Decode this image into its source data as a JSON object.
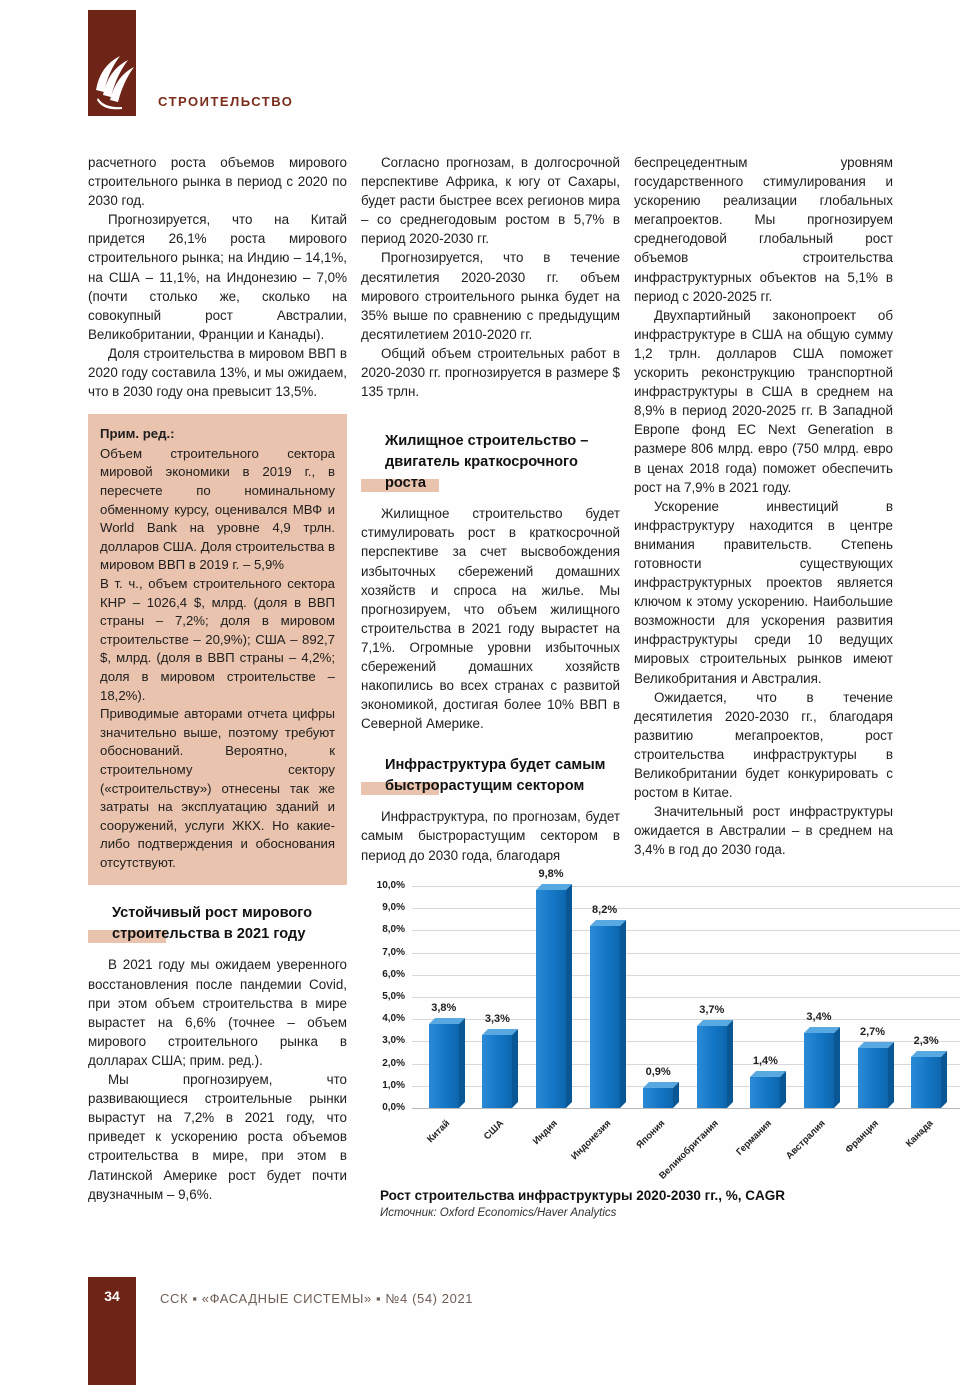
{
  "header": {
    "section_label": "СТРОИТЕЛЬСТВО"
  },
  "colors": {
    "brand": "#6e2416",
    "highlight": "#e9c3ad",
    "bar_blue": "#1377c6"
  },
  "col1": {
    "intro_paragraphs": [
      {
        "text": "расчетного роста объемов мирового строительного рынка в период с 2020 по 2030 год.",
        "indent": false
      },
      {
        "text": "Прогнозируется, что на Китай придется 26,1% роста мирового строительного рынка; на Индию – 14,1%, на США – 11,1%, на Индонезию – 7,0% (почти столько же, сколько на совокупный рост Австралии, Великобритании, Франции и Канады).",
        "indent": true
      },
      {
        "text": "Доля строительства в мировом ВВП в 2020 году составила 13%, и мы ожидаем, что в 2030 году она превысит 13,5%.",
        "indent": true
      }
    ],
    "note_box": {
      "title": "Прим. ред.:",
      "paragraphs": [
        {
          "text": "Объем строительного сектора мировой экономики в 2019 г., в пересчете по номинальному обменному курсу, оценивался МВФ и World Bank на уровне 4,9 трлн. долларов США. Доля строительства в мировом ВВП в 2019 г. – 5,9%",
          "indent": false
        },
        {
          "text": "В т. ч., объем строительного сектора КНР – 1026,4 $, млрд. (доля в ВВП страны – 7,2%; доля в мировом строительстве – 20,9%); США – 892,7 $, млрд. (доля в ВВП страны – 4,2%; доля в мировом строительстве – 18,2%).",
          "indent": false
        },
        {
          "text": "Приводимые авторами отчета цифры значительно выше, поэтому требуют обоснований. Вероятно, к строительному сектору («строительству») отнесены так же затраты на эксплуатацию зданий и сооружений, услуги ЖКХ. Но какие-либо подтверждения и обоснования отсутствуют.",
          "indent": false
        }
      ]
    },
    "heading": "Устойчивый рост мирового строительства в 2021 году",
    "growth_paragraphs": [
      {
        "text": "В 2021 году мы ожидаем уверенного восстановления после пандемии Covid, при этом объем строительства в мире вырастет на 6,6% (точнее – объем мирового строительного рынка в долларах США; прим. ред.).",
        "indent": true
      },
      {
        "text": "Мы прогнозируем, что развивающиеся строительные рынки вырастут на 7,2% в 2021 году, что приведет к ускорению роста объемов строительства в мире, при этом в Латинской Америке рост будет почти двузначным – 9,6%.",
        "indent": true
      }
    ]
  },
  "col2": {
    "forecast_paragraphs": [
      {
        "text": "Согласно прогнозам, в долгосрочной перспективе Африка, к югу от Сахары, будет расти быстрее всех регионов мира – со среднегодовым ростом в 5,7% в период 2020-2030 гг.",
        "indent": true
      },
      {
        "text": "Прогнозируется, что в течение десятилетия 2020-2030 гг. объем мирового строительного рынка будет на 35% выше по сравнению с предыдущим десятилетием 2010-2020 гг.",
        "indent": true
      },
      {
        "text": "Общий объем строительных работ в 2020-2030 гг. прогнозируется в размере $ 135 трлн.",
        "indent": true
      }
    ],
    "heading_housing": "Жилищное строительство – двигатель краткосрочного роста",
    "housing_paragraphs": [
      {
        "text": "Жилищное строительство будет стимулировать рост в краткосрочной перспективе за счет высвобождения избыточных сбережений домашних хозяйств и спроса на жилье. Мы прогнозируем, что объем жилищного строительства в 2021 году вырастет на 7,1%. Огромные уровни избыточных сбережений домашних хозяйств накопились во всех странах с развитой экономикой, достигая более 10% ВВП в Северной Америке.",
        "indent": true
      }
    ],
    "heading_infrastructure": "Инфраструктура будет самым быстрорастущим сектором",
    "infrastructure_paragraphs": [
      {
        "text": "Инфраструктура, по прогнозам, будет самым быстрорастущим сектором в период до 2030 года, благодаря",
        "indent": true
      }
    ]
  },
  "col3": {
    "paragraphs": [
      {
        "text": "беспрецедентным уровням государственного стимулирования и ускорению реализации глобальных мегапроектов. Мы прогнозируем среднегодовой глобальный рост объемов строительства инфраструктурных объектов на 5,1% в период с 2020-2025 гг.",
        "indent": false
      },
      {
        "text": "Двухпартийный законопроект об инфраструктуре в США на общую сумму 1,2 трлн. долларов США поможет ускорить реконструкцию транспортной инфраструктуры в США в среднем на 8,9% в период 2020-2025 гг. В Западной Европе фонд EC Next Generation в размере 806 млрд. евро (750 млрд. евро в ценах 2018 года) поможет обеспечить рост на 7,9% в 2021 году.",
        "indent": true
      },
      {
        "text": "Ускорение инвестиций в инфраструктуру находится в центре внимания правительств. Степень готовности существующих инфраструктурных проектов является ключом к этому ускорению. Наибольшие возможности для ускорения развития инфраструктуры среди 10 ведущих мировых строительных рынков имеют Великобритания и Австралия.",
        "indent": true
      },
      {
        "text": "Ожидается, что в течение десятилетия 2020-2030 гг., благодаря развитию мегапроектов, рост строительства инфраструктуры в Великобритании будет конкурировать с ростом в Китае.",
        "indent": true
      },
      {
        "text": "Значительный рост инфраструктуры ожидается в Австралии – в среднем на 3,4% в год до 2030 года.",
        "indent": true
      }
    ]
  },
  "chart_data": {
    "type": "bar",
    "categories": [
      "Китай",
      "США",
      "Индия",
      "Индонезия",
      "Япония",
      "Великобритания",
      "Германия",
      "Австралия",
      "Франция",
      "Канада"
    ],
    "values": [
      3.8,
      3.3,
      9.8,
      8.2,
      0.9,
      3.7,
      1.4,
      3.4,
      2.7,
      2.3
    ],
    "value_labels": [
      "3,8%",
      "3,3%",
      "9,8%",
      "8,2%",
      "0,9%",
      "3,7%",
      "1,4%",
      "3,4%",
      "2,7%",
      "2,3%"
    ],
    "y_ticks": [
      "10,0%",
      "9,0%",
      "8,0%",
      "7,0%",
      "6,0%",
      "5,0%",
      "4,0%",
      "3,0%",
      "2,0%",
      "1,0%",
      "0,0%"
    ],
    "ylim": [
      0,
      10
    ],
    "grid": true,
    "legend": false,
    "bar_color": "#1377c6",
    "title": "Рост строительства инфраструктуры 2020-2030 гг., %, CAGR",
    "source": "Источник: Oxford Economics/Haver Analytics"
  },
  "footer": {
    "page_number": "34",
    "text": "ССК ▪ «ФАСАДНЫЕ СИСТЕМЫ» ▪ №4 (54) 2021"
  }
}
